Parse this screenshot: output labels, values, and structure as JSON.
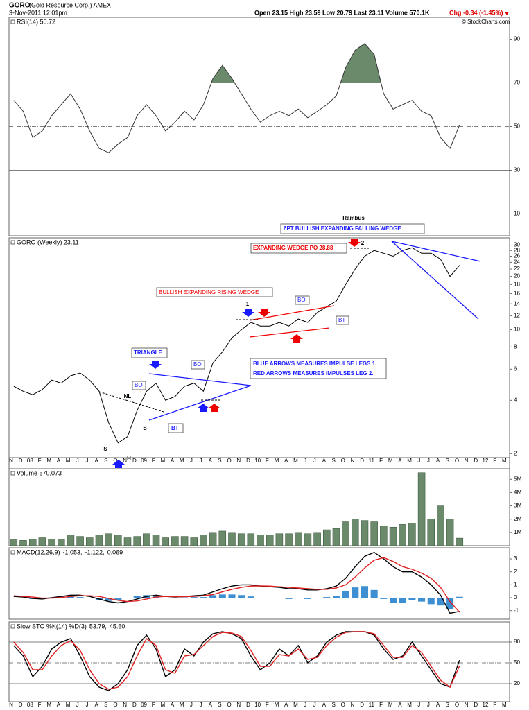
{
  "header": {
    "symbol": "GORO",
    "name": "(Gold Resource Corp.) AMEX",
    "date": "3-Nov-2011 12:01pm",
    "quote": "Open 23.15  High 23.59  Low 20.79  Last 23.11  Volume 570.1K",
    "change": "Chg -0.34 (-1.45%)",
    "copyright": "© StockCharts.com"
  },
  "xaxis_labels": [
    "N",
    "D",
    "08",
    "F",
    "M",
    "A",
    "M",
    "J",
    "J",
    "A",
    "S",
    "O",
    "N",
    "D",
    "09",
    "F",
    "M",
    "A",
    "M",
    "J",
    "J",
    "A",
    "S",
    "O",
    "N",
    "D",
    "10",
    "F",
    "M",
    "A",
    "M",
    "J",
    "J",
    "A",
    "S",
    "O",
    "N",
    "D",
    "11",
    "F",
    "M",
    "A",
    "M",
    "J",
    "J",
    "A",
    "S",
    "O",
    "N",
    "D",
    "12",
    "F",
    "M"
  ],
  "annotations": [
    "Rambus",
    "6PT BULLISH EXPANDING FALLING WEDGE",
    "EXPANDING WEDGE PO 28.88",
    "BULLISH EXPANDING RISING WEDGE",
    "TRIANGLE",
    "BO",
    "BO",
    "BO",
    "BT",
    "BT",
    "1",
    "2",
    "NL",
    "S",
    "H",
    "S",
    "BLUE ARROWS MEASURES IMPULSE LEGS 1.",
    "RED ARROWS MEASURES IMPULSES LEG 2."
  ],
  "chart_data": [
    {
      "type": "line",
      "title": "RSI(14) 50.72",
      "color": "#333333",
      "fill_above": 70,
      "fill_color": "#6b8a6b",
      "x": [
        "2007-11",
        "2007-12",
        "2008-01",
        "2008-02",
        "2008-03",
        "2008-04",
        "2008-05",
        "2008-06",
        "2008-07",
        "2008-08",
        "2008-09",
        "2008-10",
        "2008-11",
        "2008-12",
        "2009-01",
        "2009-02",
        "2009-03",
        "2009-04",
        "2009-05",
        "2009-06",
        "2009-07",
        "2009-08",
        "2009-09",
        "2009-10",
        "2009-11",
        "2009-12",
        "2010-01",
        "2010-02",
        "2010-03",
        "2010-04",
        "2010-05",
        "2010-06",
        "2010-07",
        "2010-08",
        "2010-09",
        "2010-10",
        "2010-11",
        "2010-12",
        "2011-01",
        "2011-02",
        "2011-03",
        "2011-04",
        "2011-05",
        "2011-06",
        "2011-07",
        "2011-08",
        "2011-09",
        "2011-10"
      ],
      "values": [
        62,
        57,
        45,
        48,
        55,
        60,
        65,
        58,
        48,
        40,
        38,
        42,
        45,
        55,
        60,
        55,
        48,
        52,
        57,
        53,
        60,
        72,
        78,
        72,
        65,
        58,
        52,
        55,
        57,
        55,
        58,
        54,
        57,
        60,
        64,
        77,
        85,
        88,
        83,
        65,
        58,
        60,
        62,
        57,
        55,
        45,
        40,
        50.72
      ],
      "ylim": [
        0,
        100
      ],
      "yticks": [
        10,
        30,
        50,
        70,
        90
      ],
      "ref_lines": [
        {
          "value": 70
        },
        {
          "value": 50,
          "dashed": true
        },
        {
          "value": 30
        }
      ]
    },
    {
      "type": "line",
      "title": "GORO (Weekly) 23.11",
      "color": "#000000",
      "log": true,
      "x": [
        "2007-11",
        "2007-12",
        "2008-01",
        "2008-02",
        "2008-03",
        "2008-04",
        "2008-05",
        "2008-06",
        "2008-07",
        "2008-08",
        "2008-09",
        "2008-10",
        "2008-11",
        "2008-12",
        "2009-01",
        "2009-02",
        "2009-03",
        "2009-04",
        "2009-05",
        "2009-06",
        "2009-07",
        "2009-08",
        "2009-09",
        "2009-10",
        "2009-11",
        "2009-12",
        "2010-01",
        "2010-02",
        "2010-03",
        "2010-04",
        "2010-05",
        "2010-06",
        "2010-07",
        "2010-08",
        "2010-09",
        "2010-10",
        "2010-11",
        "2010-12",
        "2011-01",
        "2011-02",
        "2011-03",
        "2011-04",
        "2011-05",
        "2011-06",
        "2011-07",
        "2011-08",
        "2011-09",
        "2011-10"
      ],
      "values": [
        4.8,
        4.5,
        4.3,
        4.6,
        5.2,
        5.0,
        5.5,
        5.7,
        5.2,
        4.5,
        3.0,
        2.3,
        2.5,
        3.5,
        4.5,
        5.0,
        4.0,
        4.2,
        4.8,
        5.0,
        4.5,
        6.5,
        7.5,
        9.0,
        10.0,
        11.0,
        10.5,
        10.5,
        11.0,
        10.5,
        11.5,
        11.0,
        12.5,
        13.5,
        14.5,
        18,
        22,
        26,
        28,
        27,
        26,
        28,
        29,
        27,
        27,
        25,
        20,
        23.11
      ],
      "ylim": [
        1.9,
        33
      ],
      "yticks": [
        2,
        4,
        6,
        8,
        10,
        12,
        14,
        16,
        18,
        20,
        22,
        24,
        26,
        28,
        30
      ]
    },
    {
      "type": "bar",
      "title": "Volume 570,073",
      "color": "#6b8a6b",
      "x": [
        "2007-11",
        "2007-12",
        "2008-01",
        "2008-02",
        "2008-03",
        "2008-04",
        "2008-05",
        "2008-06",
        "2008-07",
        "2008-08",
        "2008-09",
        "2008-10",
        "2008-11",
        "2008-12",
        "2009-01",
        "2009-02",
        "2009-03",
        "2009-04",
        "2009-05",
        "2009-06",
        "2009-07",
        "2009-08",
        "2009-09",
        "2009-10",
        "2009-11",
        "2009-12",
        "2010-01",
        "2010-02",
        "2010-03",
        "2010-04",
        "2010-05",
        "2010-06",
        "2010-07",
        "2010-08",
        "2010-09",
        "2010-10",
        "2010-11",
        "2010-12",
        "2011-01",
        "2011-02",
        "2011-03",
        "2011-04",
        "2011-05",
        "2011-06",
        "2011-07",
        "2011-08",
        "2011-09",
        "2011-10"
      ],
      "values": [
        500000,
        400000,
        500000,
        600000,
        500000,
        500000,
        800000,
        700000,
        600000,
        800000,
        900000,
        800000,
        600000,
        700000,
        900000,
        800000,
        600000,
        700000,
        700000,
        600000,
        800000,
        1000000,
        1100000,
        1000000,
        900000,
        900000,
        800000,
        800000,
        900000,
        900000,
        1000000,
        900000,
        1000000,
        1200000,
        1300000,
        1800000,
        2000000,
        1900000,
        1800000,
        1500000,
        1400000,
        1600000,
        1700000,
        5500000,
        2000000,
        3000000,
        2000000,
        570073
      ],
      "ylim": [
        0,
        5800000
      ],
      "yticks": [
        {
          "value": 1000000,
          "label": "1M"
        },
        {
          "value": 2000000,
          "label": "2M"
        },
        {
          "value": 3000000,
          "label": "3M"
        },
        {
          "value": 4000000,
          "label": "4M"
        },
        {
          "value": 5000000,
          "label": "5M"
        }
      ]
    },
    {
      "type": "line",
      "title": "MACD(12,26,9)",
      "x": [
        "2007-11",
        "2007-12",
        "2008-01",
        "2008-02",
        "2008-03",
        "2008-04",
        "2008-05",
        "2008-06",
        "2008-07",
        "2008-08",
        "2008-09",
        "2008-10",
        "2008-11",
        "2008-12",
        "2009-01",
        "2009-02",
        "2009-03",
        "2009-04",
        "2009-05",
        "2009-06",
        "2009-07",
        "2009-08",
        "2009-09",
        "2009-10",
        "2009-11",
        "2009-12",
        "2010-01",
        "2010-02",
        "2010-03",
        "2010-04",
        "2010-05",
        "2010-06",
        "2010-07",
        "2010-08",
        "2010-09",
        "2010-10",
        "2010-11",
        "2010-12",
        "2011-01",
        "2011-02",
        "2011-03",
        "2011-04",
        "2011-05",
        "2011-06",
        "2011-07",
        "2011-08",
        "2011-09",
        "2011-10"
      ],
      "series": [
        {
          "name": "-1.053,",
          "color": "#000000",
          "values": [
            0.1,
            0.05,
            -0.05,
            -0.1,
            0,
            0.1,
            0.2,
            0.2,
            0.1,
            -0.1,
            -0.3,
            -0.4,
            -0.3,
            -0.1,
            0.1,
            0.2,
            0.1,
            0.05,
            0.1,
            0.15,
            0.2,
            0.45,
            0.7,
            0.9,
            1.0,
            1.0,
            0.9,
            0.85,
            0.8,
            0.7,
            0.7,
            0.6,
            0.6,
            0.7,
            0.9,
            1.5,
            2.4,
            3.2,
            3.5,
            3.0,
            2.4,
            2.0,
            2.0,
            1.6,
            1.0,
            0.2,
            -1.2,
            -1.053
          ]
        },
        {
          "name": "-1.122,",
          "color": "#e02020",
          "values": [
            0.15,
            0.1,
            0.05,
            -0.03,
            -0.03,
            0.02,
            0.1,
            0.15,
            0.15,
            0.1,
            -0.05,
            -0.2,
            -0.3,
            -0.25,
            -0.1,
            0.05,
            0.1,
            0.08,
            0.08,
            0.1,
            0.15,
            0.25,
            0.45,
            0.65,
            0.8,
            0.9,
            0.92,
            0.9,
            0.85,
            0.8,
            0.75,
            0.7,
            0.65,
            0.65,
            0.75,
            1.0,
            1.6,
            2.3,
            2.9,
            3.1,
            2.8,
            2.4,
            2.2,
            1.9,
            1.5,
            0.8,
            -0.3,
            -1.122
          ]
        }
      ],
      "histogram": {
        "name": "0.069",
        "color": "#3d8fd1",
        "values": [
          -0.05,
          -0.05,
          -0.1,
          -0.07,
          0.03,
          0.08,
          0.1,
          0.05,
          -0.05,
          -0.2,
          -0.25,
          -0.2,
          0,
          0.15,
          0.2,
          0.15,
          0,
          -0.03,
          0.02,
          0.05,
          0.05,
          0.2,
          0.25,
          0.25,
          0.2,
          0.1,
          -0.02,
          -0.05,
          -0.05,
          -0.1,
          -0.05,
          -0.1,
          -0.05,
          0.05,
          0.15,
          0.5,
          0.8,
          0.9,
          0.6,
          -0.1,
          -0.4,
          -0.4,
          -0.2,
          -0.3,
          -0.5,
          -0.6,
          -0.9,
          0.069
        ]
      },
      "ylim": [
        -1.66,
        3.86
      ],
      "yticks": [
        -1,
        0,
        1,
        2,
        3
      ]
    },
    {
      "type": "line",
      "title": "Slow STO %K(14) %D(3)",
      "x": [
        "2007-11",
        "2007-12",
        "2008-01",
        "2008-02",
        "2008-03",
        "2008-04",
        "2008-05",
        "2008-06",
        "2008-07",
        "2008-08",
        "2008-09",
        "2008-10",
        "2008-11",
        "2008-12",
        "2009-01",
        "2009-02",
        "2009-03",
        "2009-04",
        "2009-05",
        "2009-06",
        "2009-07",
        "2009-08",
        "2009-09",
        "2009-10",
        "2009-11",
        "2009-12",
        "2010-01",
        "2010-02",
        "2010-03",
        "2010-04",
        "2010-05",
        "2010-06",
        "2010-07",
        "2010-08",
        "2010-09",
        "2010-10",
        "2010-11",
        "2010-12",
        "2011-01",
        "2011-02",
        "2011-03",
        "2011-04",
        "2011-05",
        "2011-06",
        "2011-07",
        "2011-08",
        "2011-09",
        "2011-10"
      ],
      "series": [
        {
          "name": "53.79,",
          "color": "#000000",
          "values": [
            75,
            60,
            30,
            45,
            70,
            80,
            85,
            60,
            30,
            15,
            10,
            20,
            40,
            75,
            90,
            70,
            30,
            40,
            70,
            60,
            80,
            92,
            95,
            92,
            85,
            60,
            40,
            50,
            70,
            60,
            75,
            50,
            60,
            80,
            90,
            95,
            95,
            95,
            90,
            70,
            55,
            60,
            80,
            60,
            40,
            20,
            15,
            53.79
          ]
        },
        {
          "name": "45.60",
          "color": "#e02020",
          "values": [
            80,
            65,
            40,
            40,
            60,
            75,
            82,
            68,
            40,
            20,
            12,
            15,
            30,
            60,
            85,
            75,
            40,
            35,
            60,
            62,
            75,
            88,
            94,
            93,
            88,
            68,
            45,
            45,
            62,
            60,
            70,
            55,
            58,
            75,
            87,
            94,
            95,
            95,
            92,
            75,
            58,
            58,
            75,
            65,
            45,
            25,
            15,
            45.6
          ]
        }
      ],
      "ylim": [
        -6,
        109
      ],
      "yticks": [
        20,
        50,
        80
      ],
      "ref_lines": [
        {
          "value": 80
        },
        {
          "value": 50,
          "dashed": true
        },
        {
          "value": 20
        }
      ]
    }
  ]
}
